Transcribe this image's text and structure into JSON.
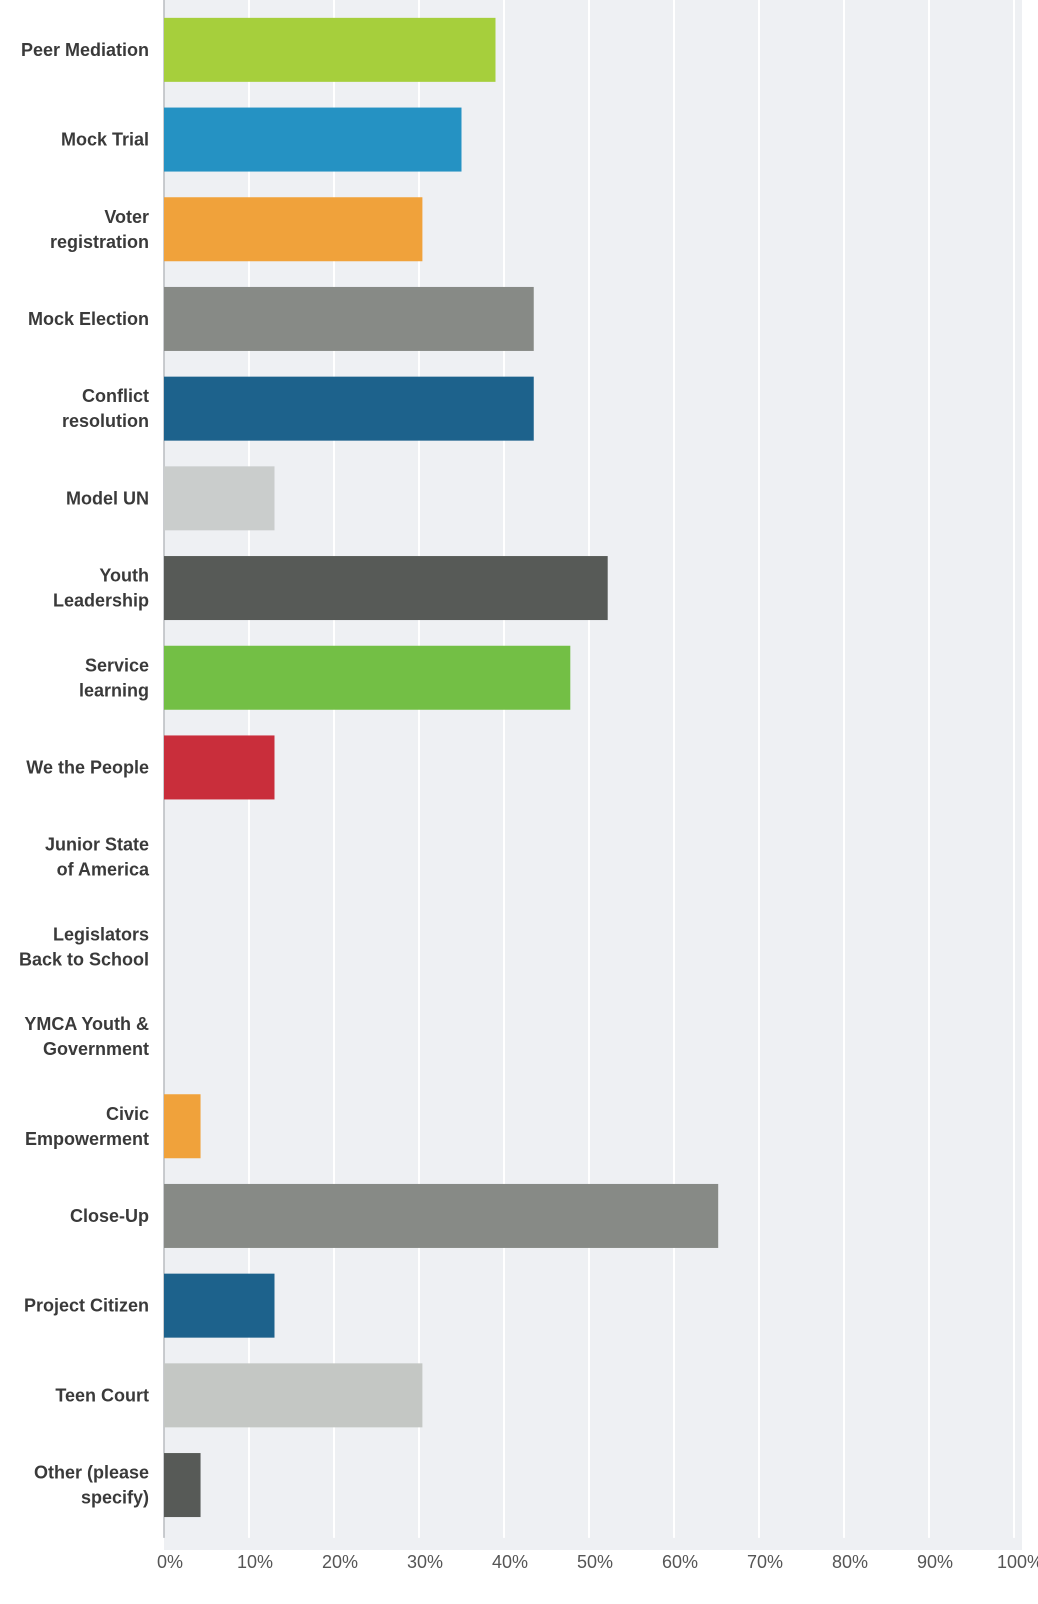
{
  "chart_data": {
    "type": "bar",
    "orientation": "horizontal",
    "categories": [
      [
        "Peer Mediation"
      ],
      [
        "Mock Trial"
      ],
      [
        "Voter",
        "registration"
      ],
      [
        "Mock Election"
      ],
      [
        "Conflict",
        "resolution"
      ],
      [
        "Model UN"
      ],
      [
        "Youth",
        "Leadership"
      ],
      [
        "Service",
        "learning"
      ],
      [
        "We the People"
      ],
      [
        "Junior State",
        "of America"
      ],
      [
        "Legislators",
        "Back to School"
      ],
      [
        "YMCA Youth &",
        "Government"
      ],
      [
        "Civic",
        "Empowerment"
      ],
      [
        "Close-Up"
      ],
      [
        "Project Citizen"
      ],
      [
        "Teen Court"
      ],
      [
        "Other (please",
        "specify)"
      ]
    ],
    "values": [
      39.0,
      35.0,
      30.4,
      43.5,
      43.5,
      13.0,
      52.2,
      47.8,
      13.0,
      0,
      0,
      0,
      4.3,
      65.2,
      13.0,
      30.4,
      4.3
    ],
    "colors": [
      "#a6cf3c",
      "#2592c3",
      "#f0a23b",
      "#878a86",
      "#1d628c",
      "#cacdcc",
      "#575a57",
      "#73bf45",
      "#c92e3b",
      "#cccccc",
      "#cccccc",
      "#cccccc",
      "#f0a23b",
      "#878a86",
      "#1d628c",
      "#c4c7c4",
      "#575a57"
    ],
    "xlim": [
      0,
      100
    ],
    "x_ticks": [
      "0%",
      "10%",
      "20%",
      "30%",
      "40%",
      "50%",
      "60%",
      "70%",
      "80%",
      "90%",
      "100%"
    ],
    "grid": true,
    "legend": "none",
    "title": "",
    "xlabel": "",
    "ylabel": ""
  }
}
